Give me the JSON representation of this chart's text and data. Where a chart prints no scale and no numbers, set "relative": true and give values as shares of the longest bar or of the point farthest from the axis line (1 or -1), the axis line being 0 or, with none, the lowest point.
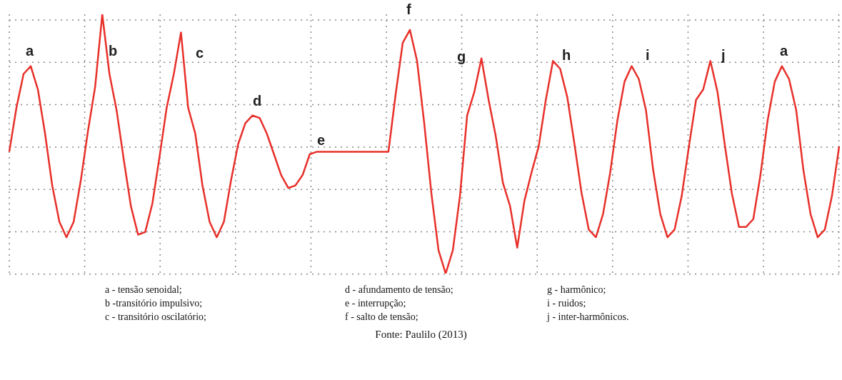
{
  "chart_data": {
    "type": "line",
    "relative": true,
    "grid": true,
    "marker": "none",
    "line_style": "solid",
    "color": "#e8302a",
    "categories": [
      null,
      null,
      null,
      null,
      null,
      null,
      null,
      null,
      null,
      null,
      null,
      null,
      null,
      null,
      null,
      null,
      null,
      null,
      null,
      null,
      null,
      null,
      null,
      null,
      null,
      null,
      null,
      null,
      null,
      null,
      null,
      null,
      null,
      null,
      null,
      null,
      null,
      null,
      null,
      null,
      null,
      null,
      null,
      null,
      null,
      null,
      null,
      null,
      null,
      null,
      null,
      null,
      null,
      null,
      null,
      null,
      null,
      null,
      null,
      null,
      null,
      null,
      null,
      null,
      null,
      null,
      null,
      null,
      null,
      null,
      null,
      null,
      null,
      null,
      null,
      null,
      null,
      null,
      null,
      null,
      null,
      null,
      null,
      null,
      null,
      null,
      null,
      null,
      null,
      null,
      null,
      null,
      null,
      null,
      null,
      null,
      null,
      null,
      null,
      null,
      null,
      null,
      null,
      null,
      null,
      null,
      null,
      null,
      null,
      null,
      null,
      null,
      null,
      null,
      null,
      null,
      null
    ],
    "values": [
      0.47,
      0.64,
      0.77,
      0.8,
      0.71,
      0.54,
      0.34,
      0.2,
      0.14,
      0.2,
      0.36,
      0.55,
      0.72,
      1.0,
      0.77,
      0.63,
      0.44,
      0.26,
      0.15,
      0.16,
      0.27,
      0.45,
      0.64,
      0.77,
      0.93,
      0.64,
      0.54,
      0.34,
      0.2,
      0.14,
      0.2,
      0.36,
      0.5,
      0.58,
      0.61,
      0.6,
      0.54,
      0.46,
      0.38,
      0.33,
      0.34,
      0.38,
      0.46,
      0.47,
      0.47,
      0.47,
      0.47,
      0.47,
      0.47,
      0.47,
      0.47,
      0.47,
      0.47,
      0.47,
      0.69,
      0.89,
      0.94,
      0.82,
      0.58,
      0.31,
      0.09,
      0,
      0.09,
      0.3,
      0.61,
      0.7,
      0.83,
      0.67,
      0.53,
      0.35,
      0.26,
      0.1,
      0.28,
      0.39,
      0.49,
      0.67,
      0.82,
      0.79,
      0.68,
      0.5,
      0.31,
      0.17,
      0.14,
      0.23,
      0.39,
      0.59,
      0.74,
      0.8,
      0.75,
      0.63,
      0.4,
      0.23,
      0.14,
      0.17,
      0.3,
      0.49,
      0.67,
      0.71,
      0.82,
      0.7,
      0.5,
      0.31,
      0.18,
      0.18,
      0.21,
      0.38,
      0.59,
      0.74,
      0.8,
      0.75,
      0.63,
      0.4,
      0.23,
      0.14,
      0.17,
      0.3,
      0.49
    ],
    "annotations": [
      "a",
      "b",
      "c",
      "d",
      "e",
      "f",
      "g",
      "h",
      "i",
      "j",
      "a",
      "a - tensão senoidal;",
      "b -transitório impulsivo;",
      "c - transitório oscilatório;",
      "d - afundamento de tensão;",
      "e - interrupção;",
      "f - salto de tensão;",
      "g - harmônico;",
      "i - ruidos;",
      "j - inter-harmônicos.",
      "Fonte: Paulilo (2013)"
    ]
  }
}
